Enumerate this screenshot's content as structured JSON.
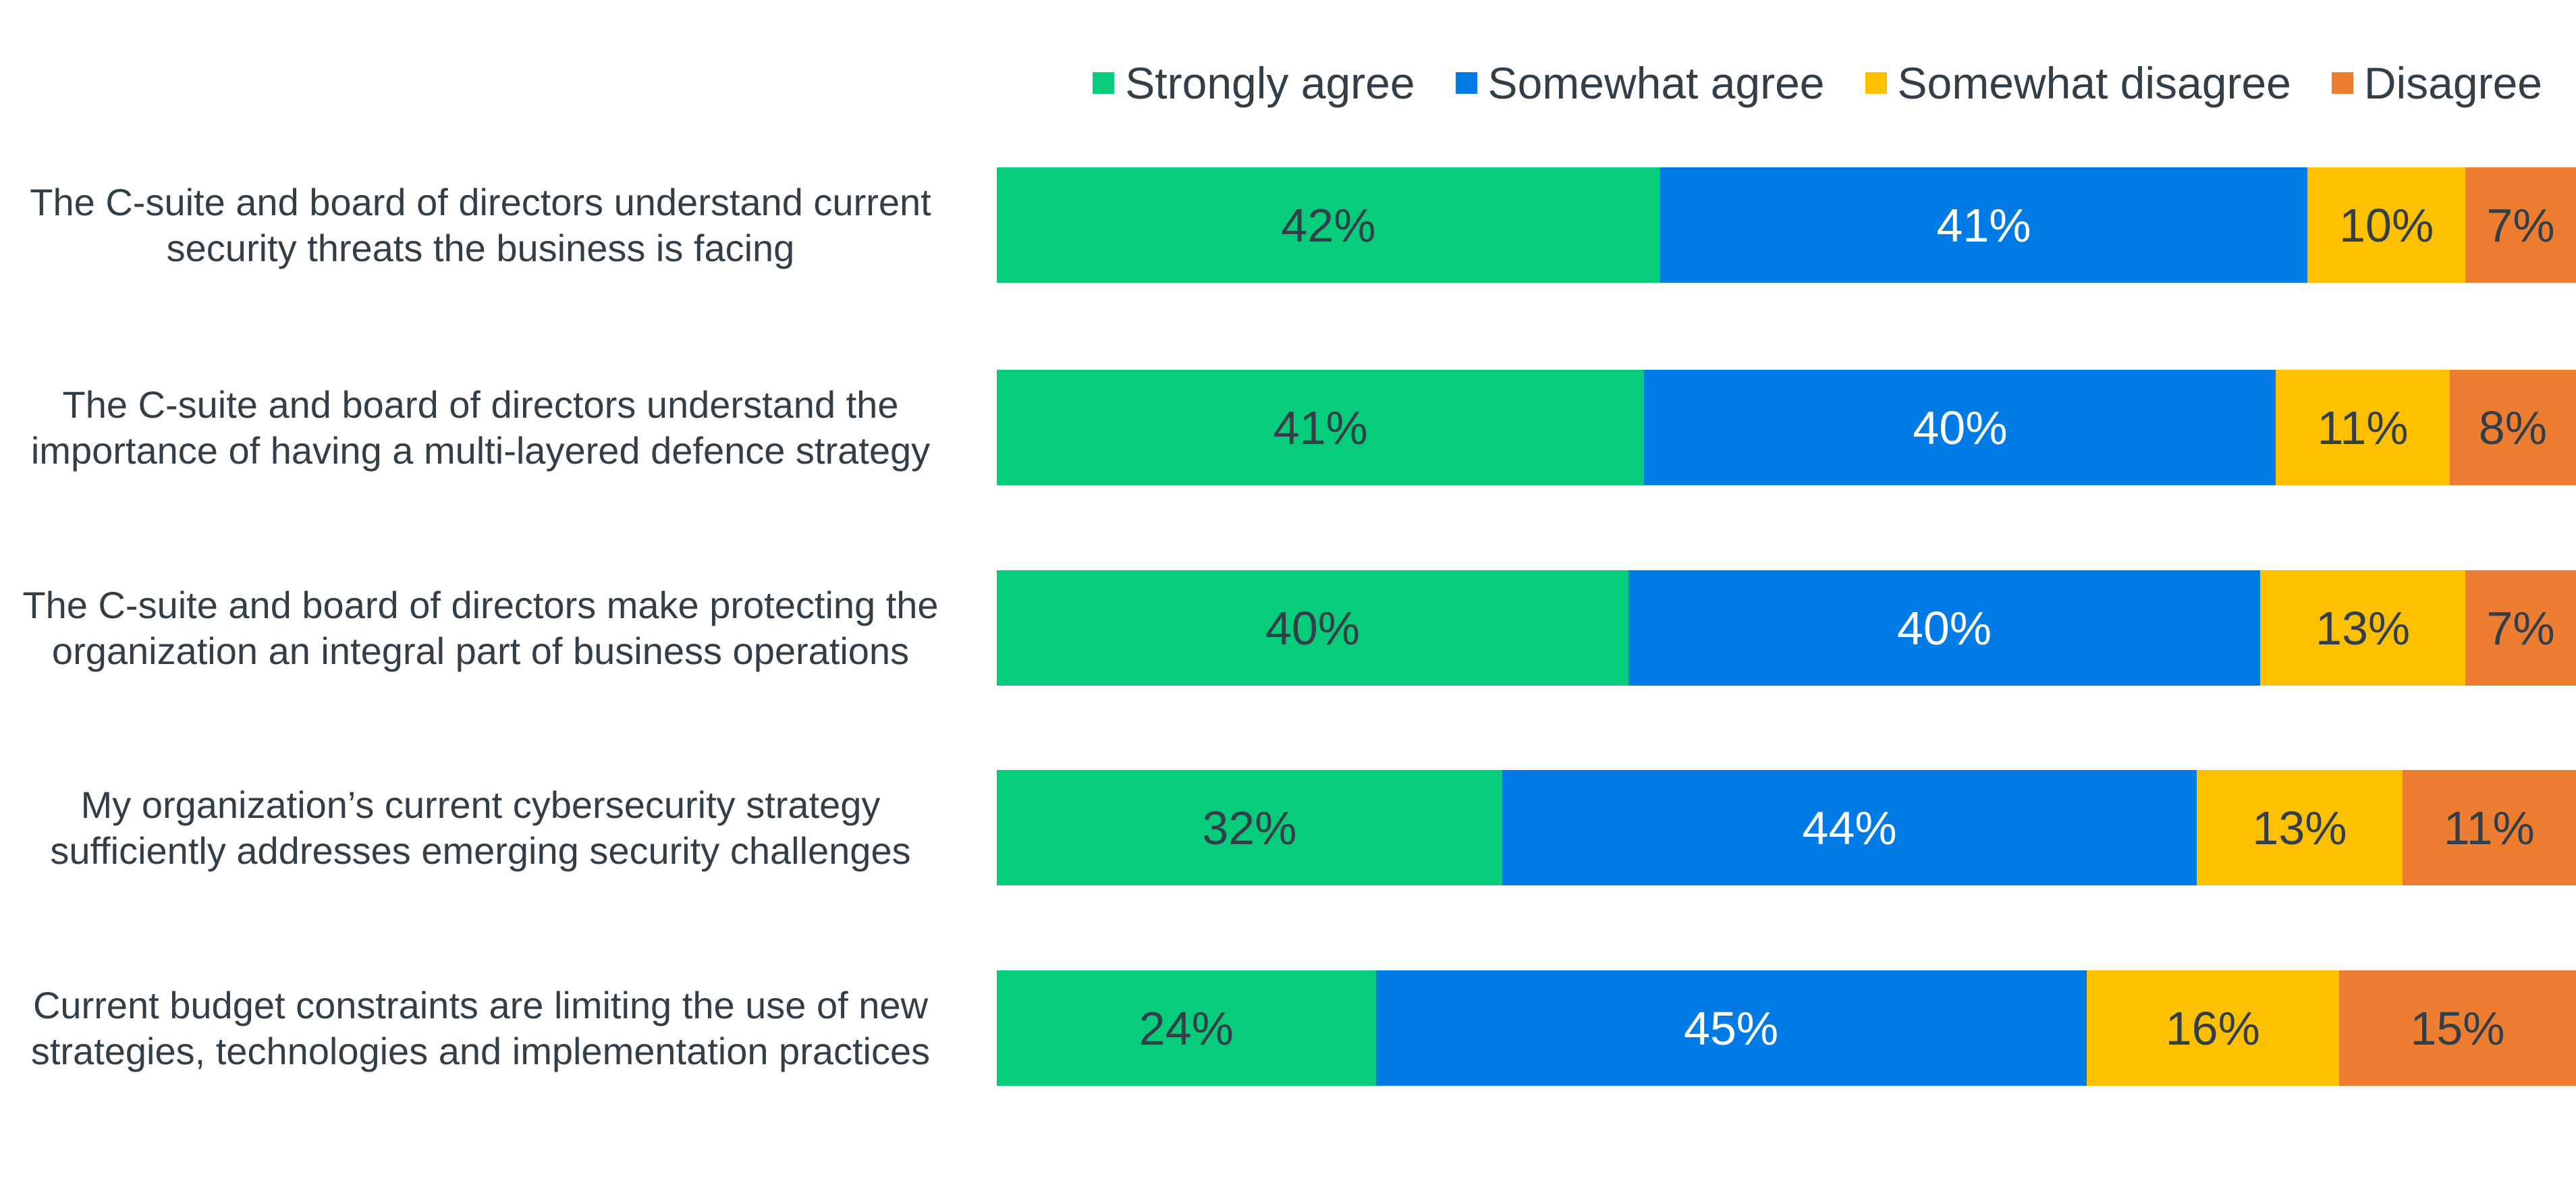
{
  "chart_data": {
    "type": "bar",
    "orientation": "horizontal",
    "stacked": true,
    "legend_position": "top-right",
    "series": [
      {
        "name": "Strongly agree",
        "color": "#06cc7c",
        "label_color": "#333f48",
        "values": [
          42,
          41,
          40,
          32,
          24
        ]
      },
      {
        "name": "Somewhat agree",
        "color": "#007be5",
        "label_color": "#ffffff",
        "values": [
          41,
          40,
          40,
          44,
          45
        ]
      },
      {
        "name": "Somewhat disagree",
        "color": "#ffc000",
        "label_color": "#333f48",
        "values": [
          10,
          11,
          13,
          13,
          16
        ]
      },
      {
        "name": "Disagree",
        "color": "#ed7d31",
        "label_color": "#333f48",
        "values": [
          7,
          8,
          7,
          11,
          15
        ]
      }
    ],
    "categories": [
      "The C-suite and board of directors understand current security threats the business is facing",
      "The C-suite and board of directors understand the importance of having a multi-layered defence strategy",
      "The C-suite and board of directors make protecting the organization an integral part of business operations",
      "My organization’s current cybersecurity strategy sufficiently addresses emerging security challenges",
      "Current budget constraints are limiting the use of new strategies, technologies and implementation practices"
    ],
    "xlim": [
      0,
      100
    ],
    "value_suffix": "%"
  }
}
